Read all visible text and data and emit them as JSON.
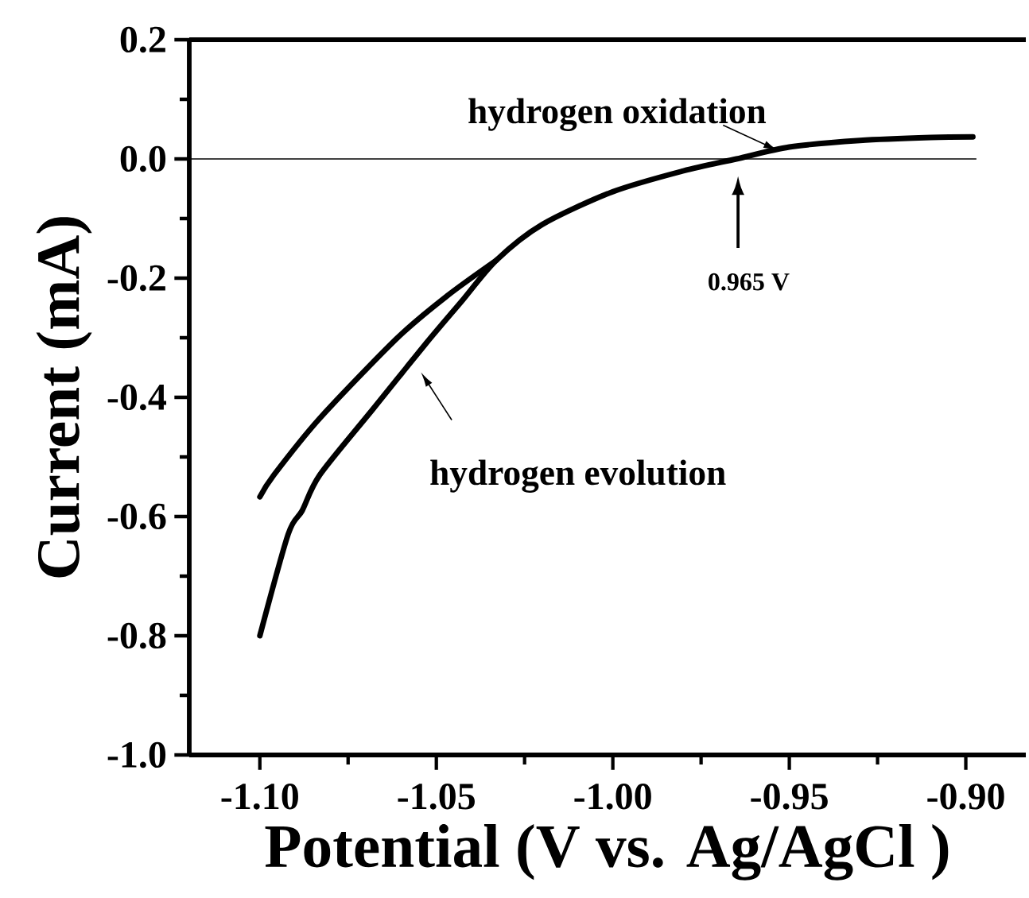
{
  "chart_data": {
    "type": "line",
    "xlabel": "Potential (V vs. Ag/AgCl )",
    "ylabel": "Current (mA)",
    "series": [
      {
        "color": "#000000",
        "x": [
          -1.1,
          -1.092,
          -1.088,
          -1.083,
          -1.068,
          -1.053,
          -1.043,
          -1.033,
          -1.02,
          -1.0,
          -0.98,
          -0.965,
          -0.95,
          -0.93,
          -0.91,
          -0.898
        ],
        "values": [
          -0.8,
          -0.63,
          -0.59,
          -0.53,
          -0.42,
          -0.31,
          -0.24,
          -0.17,
          -0.11,
          -0.055,
          -0.02,
          0.0,
          0.02,
          0.031,
          0.036,
          0.037
        ]
      },
      {
        "color": "#000000",
        "x": [
          -1.1,
          -1.096,
          -1.083,
          -1.061,
          -1.047,
          -1.033
        ],
        "values": [
          -0.567,
          -0.53,
          -0.435,
          -0.3,
          -0.23,
          -0.17
        ]
      }
    ],
    "xlim": [
      -1.12,
      -0.883
    ],
    "ylim": [
      -1.0,
      0.2
    ],
    "xticks": [
      {
        "value": -1.1,
        "label": "-1.10"
      },
      {
        "value": -1.05,
        "label": "-1.05"
      },
      {
        "value": -1.0,
        "label": "-1.00"
      },
      {
        "value": -0.95,
        "label": "-0.95"
      },
      {
        "value": -0.9,
        "label": "-0.90"
      }
    ],
    "yticks": [
      {
        "value": -1.0,
        "label": "-1.0"
      },
      {
        "value": -0.8,
        "label": "-0.8"
      },
      {
        "value": -0.6,
        "label": "-0.6"
      },
      {
        "value": -0.4,
        "label": "-0.4"
      },
      {
        "value": -0.2,
        "label": "-0.2"
      },
      {
        "value": 0.0,
        "label": "0.0"
      },
      {
        "value": 0.2,
        "label": "0.2"
      }
    ],
    "ref_lines": [
      {
        "axis": "y",
        "value": 0,
        "color": "#000000"
      }
    ],
    "annotations": [
      "hydrogen oxidation",
      "hydrogen evolution",
      "0.965 V"
    ],
    "grid": false,
    "marker": "none",
    "line_style": "solid"
  }
}
